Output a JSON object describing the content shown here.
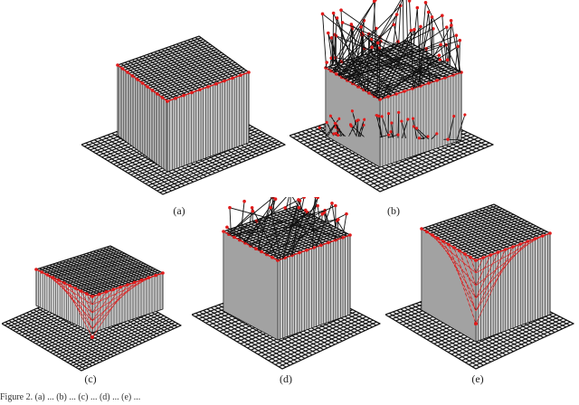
{
  "panels": [
    {
      "label": "(a)",
      "variant": "flat"
    },
    {
      "label": "(b)",
      "variant": "noisy"
    },
    {
      "label": "(c)",
      "variant": "dip-low"
    },
    {
      "label": "(d)",
      "variant": "partial-noisy"
    },
    {
      "label": "(e)",
      "variant": "dip-high"
    }
  ],
  "caption_text": "Figure 2. (a) ... (b) ... (c) ... (d) ... (e) ...",
  "colors": {
    "wall": "#d9d9d9",
    "grid": "#111111",
    "highlight": "#e11b1b"
  }
}
